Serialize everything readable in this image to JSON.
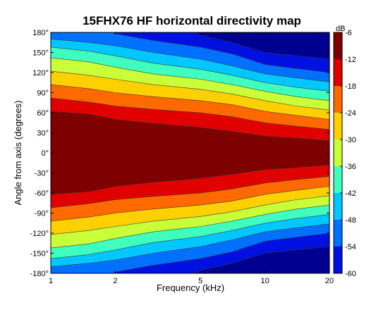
{
  "chart_data": {
    "type": "heatmap",
    "title": "15FHX76 HF horizontal directivity map",
    "xlabel": "Frequency (kHz)",
    "ylabel": "Angle from axis (degrees)",
    "x_scale": "log",
    "xlim": [
      1,
      20
    ],
    "ylim": [
      -180,
      180
    ],
    "x_ticks": [
      1,
      2,
      5,
      10,
      20
    ],
    "x_tick_labels": [
      "1",
      "2",
      "5",
      "10",
      "20"
    ],
    "y_ticks": [
      180,
      150,
      120,
      90,
      60,
      30,
      0,
      -30,
      -60,
      -90,
      -120,
      -150,
      -180
    ],
    "y_tick_labels": [
      "180°",
      "150°",
      "120°",
      "90°",
      "60°",
      "30°",
      "0°",
      "-30°",
      "-60°",
      "-90°",
      "-120°",
      "-150°",
      "-180°"
    ],
    "colorbar": {
      "unit": "dB",
      "range": [
        -60,
        -6
      ],
      "ticks": [
        -6,
        -12,
        -18,
        -24,
        -30,
        -36,
        -42,
        -48,
        -54,
        -60
      ],
      "tick_labels": [
        "-6",
        "-12",
        "-18",
        "-24",
        "-30",
        "-36",
        "-42",
        "-48",
        "-54",
        "-60"
      ],
      "colormap": "jet",
      "levels": [
        {
          "min": -6,
          "color": "#7f0000"
        },
        {
          "min": -12,
          "color": "#e00000"
        },
        {
          "min": -18,
          "color": "#ff6a00"
        },
        {
          "min": -24,
          "color": "#ffd000"
        },
        {
          "min": -30,
          "color": "#c8ff38"
        },
        {
          "min": -36,
          "color": "#40ffbe"
        },
        {
          "min": -42,
          "color": "#00c8ff"
        },
        {
          "min": -48,
          "color": "#0070ff"
        },
        {
          "min": -54,
          "color": "#0010e0"
        },
        {
          "min": -60,
          "color": "#000090"
        }
      ]
    },
    "contour_bands": [
      {
        "f": 1,
        "-6": 62,
        "-12": 82,
        "-18": 102,
        "-24": 122,
        "-30": 142,
        "-36": 158,
        "-42": 170
      },
      {
        "f": 1.5,
        "-6": 58,
        "-12": 76,
        "-18": 96,
        "-24": 116,
        "-30": 136,
        "-36": 152,
        "-42": 165
      },
      {
        "f": 2,
        "-6": 50,
        "-12": 70,
        "-18": 90,
        "-24": 110,
        "-30": 128,
        "-36": 145,
        "-42": 160,
        "-48": 178
      },
      {
        "f": 3,
        "-6": 44,
        "-12": 65,
        "-18": 84,
        "-24": 102,
        "-30": 118,
        "-36": 134,
        "-42": 150,
        "-48": 168
      },
      {
        "f": 5,
        "-6": 38,
        "-12": 60,
        "-18": 78,
        "-24": 95,
        "-30": 110,
        "-36": 125,
        "-42": 140,
        "-48": 158,
        "-54": 176
      },
      {
        "f": 7,
        "-6": 32,
        "-12": 54,
        "-18": 72,
        "-24": 88,
        "-30": 102,
        "-36": 116,
        "-42": 130,
        "-48": 148,
        "-54": 165
      },
      {
        "f": 10,
        "-6": 25,
        "-12": 45,
        "-18": 62,
        "-24": 78,
        "-30": 92,
        "-36": 105,
        "-42": 118,
        "-48": 132,
        "-54": 150
      },
      {
        "f": 14,
        "-6": 22,
        "-12": 40,
        "-18": 56,
        "-24": 70,
        "-30": 84,
        "-36": 98,
        "-42": 112,
        "-48": 126,
        "-54": 145
      },
      {
        "f": 20,
        "-6": 18,
        "-12": 35,
        "-18": 50,
        "-24": 64,
        "-30": 78,
        "-36": 92,
        "-42": 106,
        "-48": 120,
        "-54": 140
      }
    ]
  }
}
